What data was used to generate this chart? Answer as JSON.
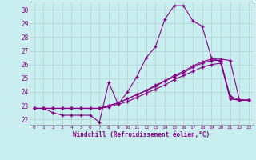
{
  "xlabel": "Windchill (Refroidissement éolien,°C)",
  "xlim_min": -0.5,
  "xlim_max": 23.5,
  "ylim_min": 21.6,
  "ylim_max": 30.6,
  "yticks": [
    22,
    23,
    24,
    25,
    26,
    27,
    28,
    29,
    30
  ],
  "xticks": [
    0,
    1,
    2,
    3,
    4,
    5,
    6,
    7,
    8,
    9,
    10,
    11,
    12,
    13,
    14,
    15,
    16,
    17,
    18,
    19,
    20,
    21,
    22,
    23
  ],
  "background_color": "#c8eef0",
  "grid_color": "#b0d0d0",
  "line_color": "#880088",
  "line1_y": [
    22.8,
    22.8,
    22.5,
    22.3,
    22.3,
    22.3,
    22.3,
    21.8,
    24.7,
    23.1,
    24.0,
    25.1,
    26.5,
    27.3,
    29.3,
    30.3,
    30.3,
    29.2,
    28.8,
    26.5,
    26.2,
    23.7,
    23.4,
    23.4
  ],
  "line2_y": [
    22.8,
    22.8,
    22.8,
    22.8,
    22.8,
    22.8,
    22.8,
    22.8,
    23.0,
    23.2,
    23.5,
    23.8,
    24.1,
    24.5,
    24.8,
    25.2,
    25.5,
    25.9,
    26.2,
    26.4,
    26.4,
    26.3,
    23.4,
    23.4
  ],
  "line3_y": [
    22.8,
    22.8,
    22.8,
    22.8,
    22.8,
    22.8,
    22.8,
    22.8,
    23.0,
    23.2,
    23.5,
    23.8,
    24.1,
    24.4,
    24.8,
    25.1,
    25.4,
    25.8,
    26.1,
    26.3,
    26.3,
    23.5,
    23.4,
    23.4
  ],
  "line4_y": [
    22.8,
    22.8,
    22.8,
    22.8,
    22.8,
    22.8,
    22.8,
    22.8,
    22.9,
    23.1,
    23.3,
    23.6,
    23.9,
    24.2,
    24.5,
    24.9,
    25.2,
    25.5,
    25.8,
    26.0,
    26.1,
    23.5,
    23.4,
    23.4
  ]
}
